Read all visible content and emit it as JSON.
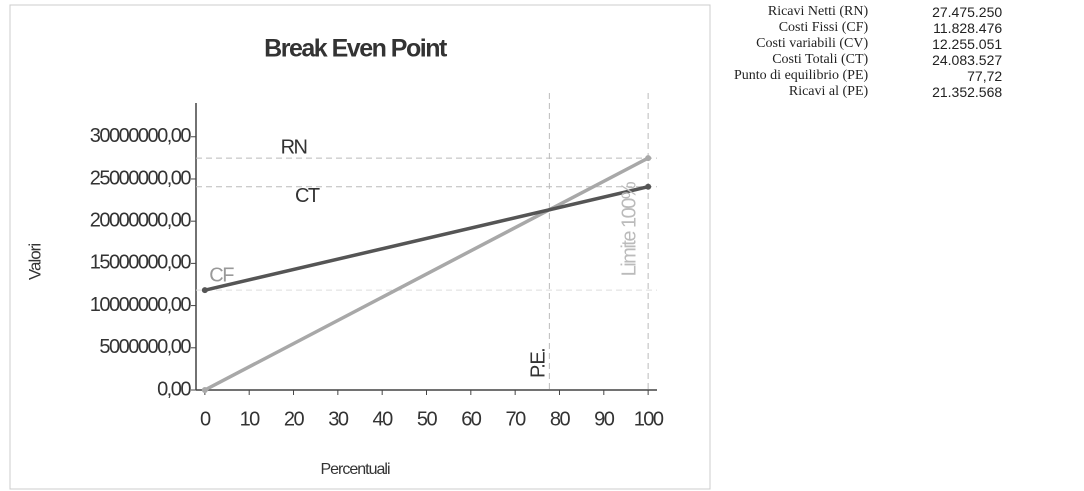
{
  "chart_data": {
    "type": "line",
    "title": "Break Even Point",
    "xlabel": "Percentuali",
    "ylabel": "Valori",
    "xlim": [
      -2,
      102
    ],
    "xticks": [
      0,
      10,
      20,
      30,
      40,
      50,
      60,
      70,
      80,
      90,
      100
    ],
    "ylim": [
      0,
      34000000
    ],
    "yticks": [
      {
        "value": 0,
        "label": "0,00"
      },
      {
        "value": 5000000,
        "label": "5000000,00"
      },
      {
        "value": 10000000,
        "label": "10000000,00"
      },
      {
        "value": 15000000,
        "label": "15000000,00"
      },
      {
        "value": 20000000,
        "label": "20000000,00"
      },
      {
        "value": 25000000,
        "label": "25000000,00"
      },
      {
        "value": 30000000,
        "label": "30000000,00"
      }
    ],
    "grid": false,
    "series": [
      {
        "name": "RN",
        "color": "#a8a8a8",
        "x": [
          0,
          100
        ],
        "values": [
          0,
          27475250
        ]
      },
      {
        "name": "CT",
        "color": "#555555",
        "x": [
          0,
          100
        ],
        "values": [
          11828476,
          24083527
        ]
      }
    ],
    "annotations": [
      {
        "text": "P.E.",
        "x": 77.72
      },
      {
        "text": "Limite 100%",
        "x": 100
      },
      {
        "text": "CF",
        "y": 11828476
      }
    ]
  },
  "table": {
    "rows": [
      [
        "Ricavi Netti (RN)",
        "27.475.250"
      ],
      [
        "Costi Fissi (CF)",
        "11.828.476"
      ],
      [
        "Costi variabili (CV)",
        "12.255.051"
      ],
      [
        "Costi Totali (CT)",
        "24.083.527"
      ],
      [
        "Punto di equilibrio (PE)",
        "77,72"
      ],
      [
        "Ricavi al (PE)",
        "21.352.568"
      ]
    ]
  }
}
